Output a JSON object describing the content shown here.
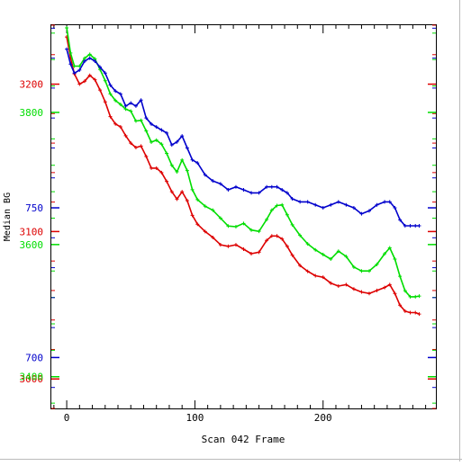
{
  "chart_data": {
    "type": "line",
    "xlabel": "Scan 042 Frame",
    "ylabel": "Median BG",
    "xlim": [
      -12,
      288
    ],
    "x_ticks": [
      0,
      100,
      200
    ],
    "grid": false,
    "legend": "none",
    "series": [
      {
        "color": "#dd0000",
        "ylim": [
          2980,
          3240
        ],
        "tick_labels": [
          "3200",
          "3100",
          "3000"
        ],
        "tick_values": [
          3200,
          3100,
          3000
        ],
        "x": [
          0,
          3,
          6,
          10,
          14,
          18,
          22,
          26,
          30,
          34,
          38,
          42,
          46,
          50,
          54,
          58,
          62,
          66,
          70,
          74,
          78,
          82,
          86,
          90,
          94,
          98,
          102,
          108,
          114,
          120,
          126,
          132,
          138,
          144,
          150,
          156,
          160,
          164,
          168,
          172,
          176,
          182,
          188,
          194,
          200,
          206,
          212,
          218,
          224,
          230,
          236,
          242,
          248,
          252,
          256,
          260,
          264,
          268,
          272,
          275
        ],
        "values": [
          3232,
          3218,
          3207,
          3200,
          3202,
          3206,
          3203,
          3196,
          3188,
          3178,
          3173,
          3171,
          3165,
          3160,
          3157,
          3158,
          3151,
          3143,
          3143,
          3140,
          3134,
          3127,
          3122,
          3127,
          3121,
          3111,
          3105,
          3100,
          3096,
          3091,
          3090,
          3091,
          3088,
          3085,
          3086,
          3094,
          3097,
          3097,
          3095,
          3090,
          3084,
          3077,
          3073,
          3070,
          3069,
          3065,
          3063,
          3064,
          3061,
          3059,
          3058,
          3060,
          3062,
          3064,
          3058,
          3050,
          3046,
          3045,
          3045,
          3044
        ]
      },
      {
        "color": "#00dd00",
        "ylim": [
          3352,
          3932
        ],
        "tick_labels": [
          "3800",
          "3600",
          "3400"
        ],
        "tick_values": [
          3800,
          3600,
          3400
        ],
        "x": [
          0,
          3,
          6,
          10,
          14,
          18,
          22,
          26,
          30,
          34,
          38,
          42,
          46,
          50,
          54,
          58,
          62,
          66,
          70,
          74,
          78,
          82,
          86,
          90,
          94,
          98,
          102,
          108,
          114,
          120,
          126,
          132,
          138,
          144,
          150,
          156,
          160,
          164,
          168,
          172,
          176,
          182,
          188,
          194,
          200,
          206,
          212,
          218,
          224,
          230,
          236,
          242,
          248,
          252,
          256,
          260,
          264,
          268,
          272,
          275
        ],
        "values": [
          3928,
          3890,
          3870,
          3870,
          3882,
          3888,
          3881,
          3865,
          3848,
          3828,
          3818,
          3812,
          3805,
          3802,
          3787,
          3788,
          3772,
          3755,
          3758,
          3752,
          3738,
          3720,
          3710,
          3728,
          3712,
          3683,
          3668,
          3658,
          3652,
          3640,
          3628,
          3627,
          3632,
          3622,
          3620,
          3638,
          3652,
          3659,
          3660,
          3645,
          3630,
          3614,
          3601,
          3592,
          3585,
          3578,
          3590,
          3582,
          3566,
          3560,
          3560,
          3570,
          3586,
          3595,
          3578,
          3552,
          3530,
          3521,
          3521,
          3522
        ]
      },
      {
        "color": "#0000cc",
        "ylim": [
          683,
          811
        ],
        "tick_labels": [
          "750",
          "700"
        ],
        "tick_values": [
          750,
          700
        ],
        "x": [
          0,
          3,
          6,
          10,
          14,
          18,
          22,
          26,
          30,
          34,
          38,
          42,
          46,
          50,
          54,
          58,
          62,
          66,
          70,
          74,
          78,
          82,
          86,
          90,
          94,
          98,
          102,
          108,
          114,
          120,
          126,
          132,
          138,
          144,
          150,
          156,
          160,
          164,
          168,
          172,
          176,
          182,
          188,
          194,
          200,
          206,
          212,
          218,
          224,
          230,
          236,
          242,
          248,
          252,
          256,
          260,
          264,
          268,
          272,
          275
        ],
        "values": [
          803,
          798,
          795,
          796,
          799,
          800,
          799,
          797,
          795,
          791,
          789,
          788,
          784,
          785,
          784,
          786,
          780,
          778,
          777,
          776,
          775,
          771,
          772,
          774,
          770,
          766,
          765,
          761,
          759,
          758,
          756,
          757,
          756,
          755,
          755,
          757,
          757,
          757,
          756,
          755,
          753,
          752,
          752,
          751,
          750,
          751,
          752,
          751,
          750,
          748,
          749,
          751,
          752,
          752,
          750,
          746,
          744,
          744,
          744,
          744
        ]
      }
    ]
  }
}
